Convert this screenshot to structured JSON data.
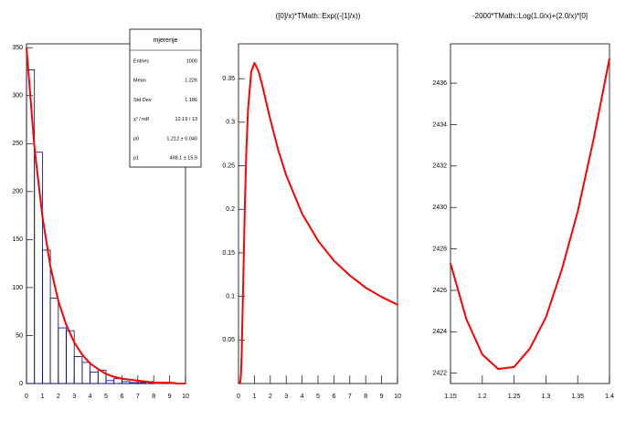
{
  "chart_data": [
    {
      "type": "histogram",
      "bins": [
        0,
        0.5,
        1,
        1.5,
        2,
        2.5,
        3,
        3.5,
        4,
        4.5,
        5,
        5.5,
        6,
        6.5,
        7,
        7.5,
        8,
        8.5,
        9,
        9.5,
        10
      ],
      "values": [
        327,
        241,
        139,
        89,
        58,
        55,
        28,
        22,
        12,
        14,
        3,
        5,
        2,
        1,
        1,
        2,
        0,
        1,
        0,
        0
      ],
      "color": "#000080",
      "fit": {
        "color": "#ff0000",
        "x": [
          0,
          0.5,
          1,
          1.5,
          2,
          2.5,
          3,
          3.5,
          4,
          4.5,
          5,
          5.5,
          6,
          6.5,
          7,
          7.5,
          8,
          8.5,
          9,
          9.5,
          10
        ],
        "values": [
          350,
          246,
          174,
          122,
          86,
          61,
          43,
          30,
          21,
          15,
          10,
          7,
          5,
          4,
          3,
          2,
          1,
          1,
          1,
          0,
          0
        ]
      },
      "xlim": [
        0,
        10
      ],
      "xticks": [
        0,
        1,
        2,
        3,
        4,
        5,
        6,
        7,
        8,
        9,
        10
      ],
      "ylim": [
        0,
        354
      ],
      "yticks": [
        0,
        50,
        100,
        150,
        200,
        250,
        300,
        350
      ],
      "stats": {
        "title": "mjerenje",
        "rows": [
          [
            "Entries",
            "1000"
          ],
          [
            "Mean",
            "1.226"
          ],
          [
            "Std Dev",
            "1.186"
          ],
          [
            "χ² / ndf",
            "12.19 / 13"
          ],
          [
            "p0",
            "1.212 ± 0.040"
          ],
          [
            "p1",
            "498.1 ± 15.9"
          ]
        ]
      }
    },
    {
      "type": "line",
      "title": "([0]/x)*TMath::Exp((-[1]/x))",
      "color": "#ff0000",
      "x": [
        0.05,
        0.1,
        0.15,
        0.2,
        0.3,
        0.4,
        0.5,
        0.6,
        0.8,
        1,
        1.25,
        1.5,
        2,
        2.5,
        3,
        4,
        5,
        6,
        7,
        8,
        9,
        10
      ],
      "values": [
        0,
        0.000454,
        0.00849,
        0.0337,
        0.119,
        0.205,
        0.271,
        0.315,
        0.358,
        0.368,
        0.359,
        0.342,
        0.303,
        0.268,
        0.239,
        0.195,
        0.164,
        0.141,
        0.124,
        0.11,
        0.0994,
        0.0905
      ],
      "xlim": [
        0,
        10
      ],
      "xticks": [
        0,
        1,
        2,
        3,
        4,
        5,
        6,
        7,
        8,
        9,
        10
      ],
      "ylim": [
        0,
        0.39
      ],
      "yticks": [
        0.05,
        0.1,
        0.15,
        0.2,
        0.25,
        0.3,
        0.35
      ]
    },
    {
      "type": "line",
      "title": "-2000*TMath::Log(1.0/x)+(2.0/x)*[0]",
      "color": "#ff0000",
      "x": [
        1.15,
        1.175,
        1.2,
        1.225,
        1.25,
        1.275,
        1.3,
        1.325,
        1.35,
        1.375,
        1.4
      ],
      "values": [
        2427.3,
        2424.6,
        2422.9,
        2422.2,
        2422.3,
        2423.2,
        2424.7,
        2427.0,
        2429.8,
        2433.3,
        2437.2
      ],
      "xlim": [
        1.15,
        1.4
      ],
      "xticks": [
        1.15,
        1.2,
        1.25,
        1.3,
        1.35,
        1.4
      ],
      "ylim": [
        2421.5,
        2437.9
      ],
      "yticks": [
        2422,
        2424,
        2426,
        2428,
        2430,
        2432,
        2434,
        2436
      ]
    }
  ]
}
